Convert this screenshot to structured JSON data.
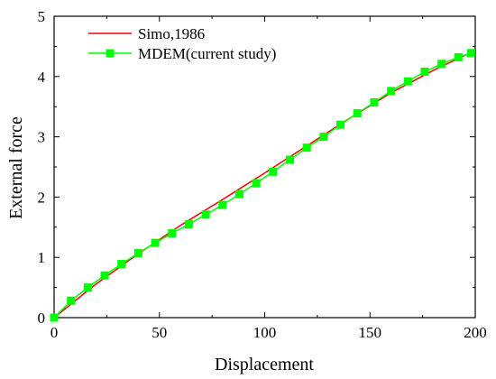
{
  "chart_data": {
    "type": "line",
    "xlabel": "Displacement",
    "ylabel": "External force",
    "xlim": [
      0,
      200
    ],
    "ylim": [
      0,
      5
    ],
    "x_ticks": [
      "0",
      "50",
      "100",
      "150",
      "200"
    ],
    "y_ticks": [
      "0",
      "1",
      "2",
      "3",
      "4",
      "5"
    ],
    "grid": false,
    "legend_position": "top-left",
    "series": [
      {
        "name": "Simo,1986",
        "color": "#ff0000",
        "marker": "none",
        "x": [
          0,
          20,
          40,
          60,
          80,
          100,
          120,
          140,
          160,
          180,
          198
        ],
        "y": [
          0,
          0.56,
          1.06,
          1.53,
          1.96,
          2.4,
          2.85,
          3.3,
          3.73,
          4.1,
          4.4
        ]
      },
      {
        "name": "MDEM(current study)",
        "color": "#00ff00",
        "marker": "square",
        "x": [
          0,
          8,
          16,
          24,
          32,
          40,
          48,
          56,
          64,
          72,
          80,
          88,
          96,
          104,
          112,
          120,
          128,
          136,
          144,
          152,
          160,
          168,
          176,
          184,
          192,
          198
        ],
        "y": [
          0,
          0.28,
          0.5,
          0.7,
          0.89,
          1.07,
          1.24,
          1.4,
          1.55,
          1.71,
          1.87,
          2.05,
          2.23,
          2.42,
          2.62,
          2.82,
          3.0,
          3.2,
          3.39,
          3.57,
          3.76,
          3.92,
          4.08,
          4.21,
          4.32,
          4.39
        ]
      }
    ]
  }
}
